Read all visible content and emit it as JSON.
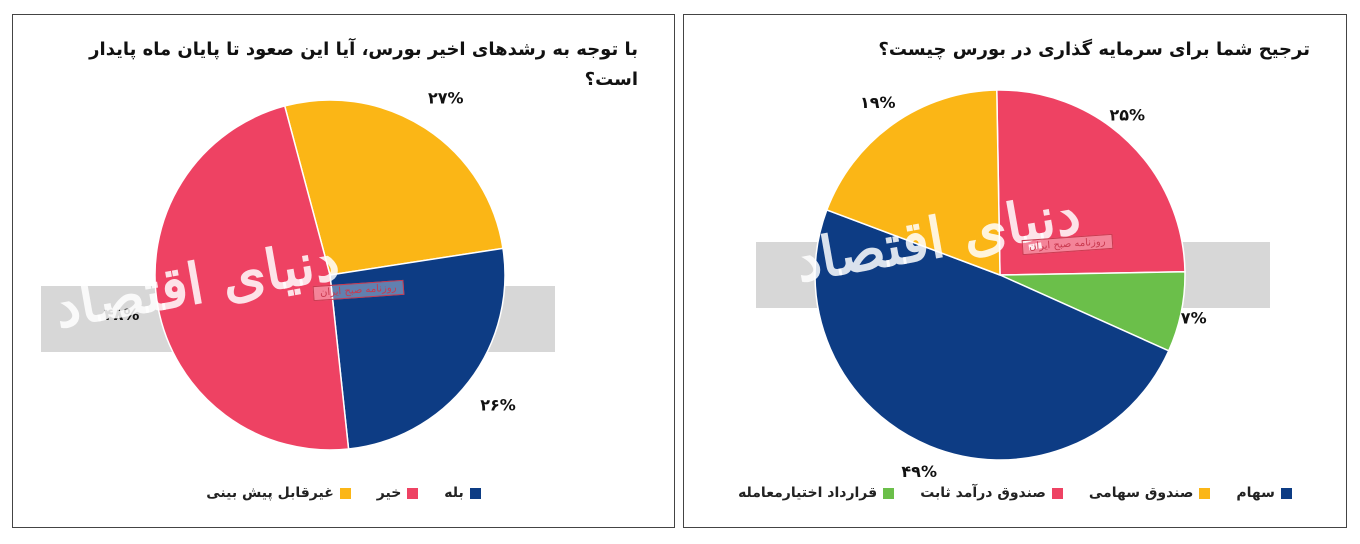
{
  "chart_data": [
    {
      "type": "pie",
      "title": "با توجه به رشدهای اخیر بورس، آیا این صعود تا پایان ماه پایدار است؟",
      "labels": [
        "غیرقابل پیش بینی",
        "بله",
        "خیر"
      ],
      "values": [
        27,
        26,
        48
      ],
      "value_labels": [
        "۲۷%",
        "۲۶%",
        "۴۸%"
      ],
      "colors": [
        "#FBB616",
        "#0D3C84",
        "#EE4263"
      ],
      "legend": {
        "position": "bottom",
        "items": [
          {
            "label": "بله",
            "color": "#0D3C84"
          },
          {
            "label": "خیر",
            "color": "#EE4263"
          },
          {
            "label": "غیرقابل پیش بینی",
            "color": "#FBB616"
          }
        ]
      }
    },
    {
      "type": "pie",
      "title": "ترجیح شما برای سرمایه گذاری در بورس چیست؟",
      "labels": [
        "صندوق درآمد ثابت",
        "قرارداد اختیارمعامله",
        "سهام",
        "صندوق سهامی"
      ],
      "values": [
        25,
        7,
        49,
        19
      ],
      "value_labels": [
        "۲۵%",
        "۷%",
        "۴۹%",
        "۱۹%"
      ],
      "colors": [
        "#EE4263",
        "#6BBF4A",
        "#0D3C84",
        "#FBB616"
      ],
      "legend": {
        "position": "bottom",
        "items": [
          {
            "label": "سهام",
            "color": "#0D3C84"
          },
          {
            "label": "صندوق سهامی",
            "color": "#FBB616"
          },
          {
            "label": "صندوق درآمد ثابت",
            "color": "#EE4263"
          },
          {
            "label": "قرارداد اختیارمعامله",
            "color": "#6BBF4A"
          }
        ]
      }
    }
  ],
  "watermark": {
    "main": "دنیای اقتصاد",
    "sub": "روزنامه صبح ایران"
  }
}
